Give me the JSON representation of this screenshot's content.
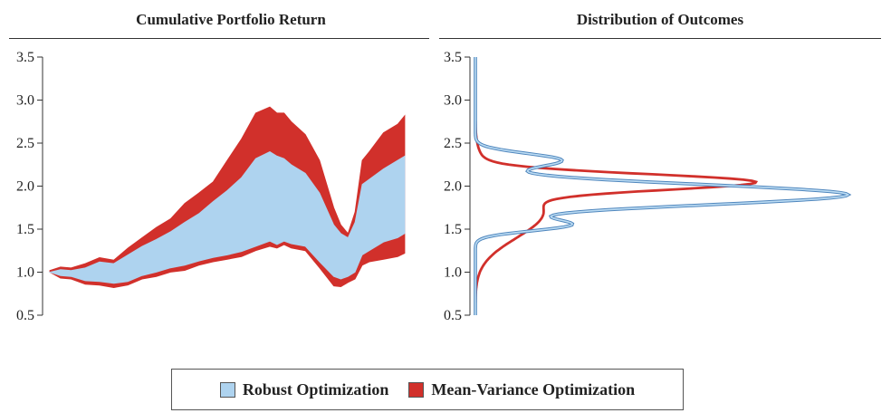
{
  "chart_data": [
    {
      "type": "area",
      "title": "Cumulative Portfolio Return",
      "ylim": [
        0.5,
        3.5
      ],
      "yticks": [
        "0.5",
        "1.0",
        "1.5",
        "2.0",
        "2.5",
        "3.0",
        "3.5"
      ],
      "yticks_values": [
        0.5,
        1.0,
        1.5,
        2.0,
        2.5,
        3.0,
        3.5
      ],
      "xlim": [
        0,
        100
      ],
      "x": [
        0,
        3,
        6,
        10,
        14,
        18,
        22,
        26,
        30,
        34,
        38,
        42,
        46,
        50,
        54,
        58,
        62,
        64,
        66,
        68,
        72,
        76,
        80,
        82,
        84,
        86,
        88,
        90,
        94,
        98,
        100
      ],
      "series": [
        {
          "name": "Mean-Variance Optimization",
          "color": "#d1302b",
          "upper": [
            1.02,
            1.06,
            1.05,
            1.1,
            1.17,
            1.14,
            1.28,
            1.4,
            1.52,
            1.62,
            1.8,
            1.92,
            2.05,
            2.3,
            2.55,
            2.85,
            2.92,
            2.85,
            2.85,
            2.75,
            2.6,
            2.3,
            1.75,
            1.55,
            1.45,
            1.7,
            2.3,
            2.4,
            2.62,
            2.72,
            2.82
          ],
          "lower": [
            1.0,
            0.93,
            0.92,
            0.86,
            0.85,
            0.82,
            0.85,
            0.92,
            0.95,
            1.0,
            1.02,
            1.08,
            1.12,
            1.15,
            1.18,
            1.25,
            1.3,
            1.28,
            1.32,
            1.28,
            1.25,
            1.05,
            0.84,
            0.83,
            0.88,
            0.92,
            1.08,
            1.12,
            1.15,
            1.18,
            1.22
          ]
        },
        {
          "name": "Robust Optimization",
          "color": "#aed3ef",
          "upper": [
            1.0,
            1.03,
            1.02,
            1.05,
            1.12,
            1.1,
            1.2,
            1.3,
            1.38,
            1.47,
            1.58,
            1.68,
            1.82,
            1.95,
            2.1,
            2.32,
            2.4,
            2.35,
            2.32,
            2.25,
            2.15,
            1.92,
            1.55,
            1.45,
            1.4,
            1.58,
            2.02,
            2.08,
            2.2,
            2.3,
            2.35
          ],
          "lower": [
            1.0,
            0.96,
            0.95,
            0.9,
            0.89,
            0.87,
            0.89,
            0.96,
            1.0,
            1.05,
            1.08,
            1.13,
            1.17,
            1.2,
            1.24,
            1.3,
            1.36,
            1.32,
            1.36,
            1.33,
            1.3,
            1.12,
            0.95,
            0.92,
            0.95,
            1.0,
            1.2,
            1.25,
            1.35,
            1.4,
            1.45
          ]
        }
      ]
    },
    {
      "type": "line",
      "title": "Distribution of Outcomes",
      "ylim": [
        0.5,
        3.5
      ],
      "yticks": [
        "0.5",
        "1.0",
        "1.5",
        "2.0",
        "2.5",
        "3.0",
        "3.5"
      ],
      "yticks_values": [
        0.5,
        1.0,
        1.5,
        2.0,
        2.5,
        3.0,
        3.5
      ],
      "xlim": [
        0,
        2.4
      ],
      "series": [
        {
          "name": "Mean-Variance Optimization",
          "color": "#d1302b",
          "components": [
            {
              "mu": 2.05,
              "sigma": 0.09,
              "w": 0.52
            },
            {
              "mu": 1.7,
              "sigma": 0.3,
              "w": 0.48
            }
          ]
        },
        {
          "name": "Robust Optimization",
          "color": "#6fa6d6",
          "components": [
            {
              "mu": 1.9,
              "sigma": 0.12,
              "w": 1.05
            },
            {
              "mu": 2.3,
              "sigma": 0.08,
              "w": 0.16
            },
            {
              "mu": 1.55,
              "sigma": 0.07,
              "w": 0.15
            }
          ]
        }
      ]
    }
  ],
  "legend": {
    "items": [
      {
        "label": "Robust Optimization",
        "color": "#aed3ef"
      },
      {
        "label": "Mean-Variance Optimization",
        "color": "#d1302b"
      }
    ]
  }
}
